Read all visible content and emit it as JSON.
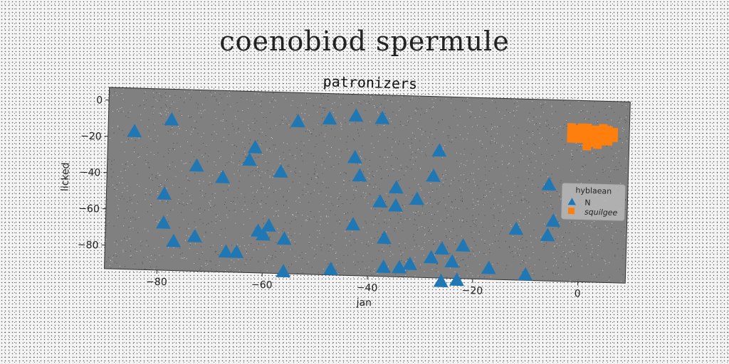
{
  "suptitle": "coenobiod spermule",
  "chart_data": {
    "type": "scatter",
    "title": "patronizers",
    "xlabel": "jan",
    "ylabel": "licked",
    "xlim": [
      -90,
      9
    ],
    "ylim": [
      -93,
      7
    ],
    "xticks": [
      -80,
      -60,
      -40,
      -20,
      0
    ],
    "yticks": [
      0,
      -20,
      -40,
      -60,
      -80
    ],
    "grid": false,
    "background": "#808080",
    "legend": {
      "title": "hyblaean",
      "position": "right"
    },
    "series": [
      {
        "name": "N",
        "marker": "triangle",
        "color": "#1f77b4",
        "points": [
          [
            -85,
            -17
          ],
          [
            -78,
            -10
          ],
          [
            -73,
            -35
          ],
          [
            -79,
            -51
          ],
          [
            -79,
            -67
          ],
          [
            -77,
            -77
          ],
          [
            -73,
            -74
          ],
          [
            -68,
            -41
          ],
          [
            -67,
            -82
          ],
          [
            -65,
            -82
          ],
          [
            -63,
            -31
          ],
          [
            -62,
            -24
          ],
          [
            -61,
            -70
          ],
          [
            -60,
            -72
          ],
          [
            -59,
            -67
          ],
          [
            -57,
            -37
          ],
          [
            -56,
            -92
          ],
          [
            -56,
            -74
          ],
          [
            -54,
            -9
          ],
          [
            -48,
            -7
          ],
          [
            -47,
            -90
          ],
          [
            -43,
            -5
          ],
          [
            -43,
            -28
          ],
          [
            -42,
            -38
          ],
          [
            -43,
            -65
          ],
          [
            -38,
            -6
          ],
          [
            -38,
            -52
          ],
          [
            -37,
            -72
          ],
          [
            -37,
            -88
          ],
          [
            -35,
            -44
          ],
          [
            -35,
            -54
          ],
          [
            -34,
            -88
          ],
          [
            -32,
            -86
          ],
          [
            -31,
            -50
          ],
          [
            -28,
            -82
          ],
          [
            -28,
            -37
          ],
          [
            -27,
            -23
          ],
          [
            -26,
            -77
          ],
          [
            -26,
            -95
          ],
          [
            -24,
            -84
          ],
          [
            -23,
            -94
          ],
          [
            -22,
            -75
          ],
          [
            -17,
            -87
          ],
          [
            -12,
            -65
          ],
          [
            -10,
            -90
          ],
          [
            -6,
            -40
          ],
          [
            -6,
            -68
          ],
          [
            -5,
            -60
          ]
        ]
      },
      {
        "name": "squilgee",
        "marker": "square",
        "color": "#ff7f0e",
        "points": [
          [
            -2,
            -8
          ],
          [
            -1,
            -9
          ],
          [
            0,
            -8
          ],
          [
            1,
            -8
          ],
          [
            2,
            -9
          ],
          [
            3,
            -9
          ],
          [
            4,
            -8
          ],
          [
            5,
            -9
          ],
          [
            6,
            -10
          ],
          [
            -2,
            -11
          ],
          [
            -1,
            -11
          ],
          [
            0,
            -12
          ],
          [
            1,
            -11
          ],
          [
            2,
            -11
          ],
          [
            3,
            -12
          ],
          [
            4,
            -12
          ],
          [
            5,
            -12
          ],
          [
            6,
            -13
          ],
          [
            -1,
            -14
          ],
          [
            0,
            -14
          ],
          [
            1,
            -15
          ],
          [
            2,
            -14
          ],
          [
            3,
            -14
          ],
          [
            4,
            -15
          ],
          [
            5,
            -15
          ],
          [
            1,
            -17
          ],
          [
            2,
            -16
          ],
          [
            3,
            -17
          ],
          [
            1,
            -18
          ],
          [
            -2,
            -14
          ],
          [
            4,
            -10
          ],
          [
            0,
            -10
          ]
        ]
      }
    ]
  }
}
